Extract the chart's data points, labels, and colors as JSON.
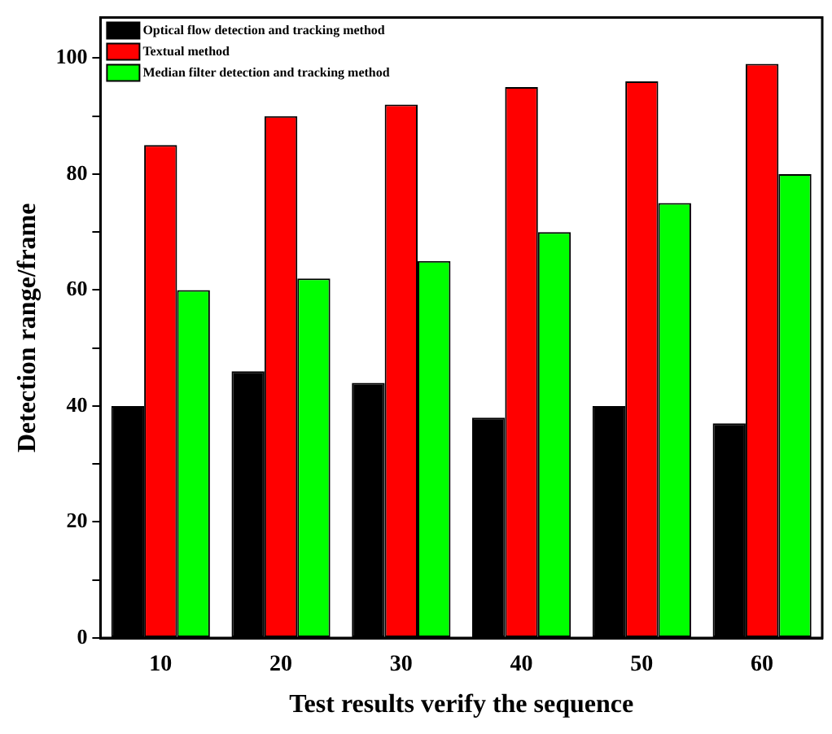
{
  "chart_data": {
    "type": "bar",
    "xlabel": "Test results verify the sequence",
    "ylabel": "Detection range/frame",
    "categories": [
      "10",
      "20",
      "30",
      "40",
      "50",
      "60"
    ],
    "series": [
      {
        "name": "Optical flow detection and tracking method",
        "color": "#000000",
        "values": [
          40,
          46,
          44,
          38,
          40,
          37
        ]
      },
      {
        "name": "Textual method",
        "color": "#ff0000",
        "values": [
          85,
          90,
          92,
          95,
          96,
          99
        ]
      },
      {
        "name": "Median filter detection and tracking method",
        "color": "#00ff00",
        "values": [
          60,
          62,
          65,
          70,
          75,
          80
        ]
      }
    ],
    "ylim": [
      0,
      107
    ],
    "yticks": [
      0,
      {
        "value": 10,
        "label": null
      },
      20,
      {
        "value": 30,
        "label": null
      },
      40,
      {
        "value": 50,
        "label": null
      },
      60,
      {
        "value": 70,
        "label": null
      },
      80,
      {
        "value": 90,
        "label": null
      },
      100
    ],
    "grid": false,
    "legend": "top left"
  }
}
